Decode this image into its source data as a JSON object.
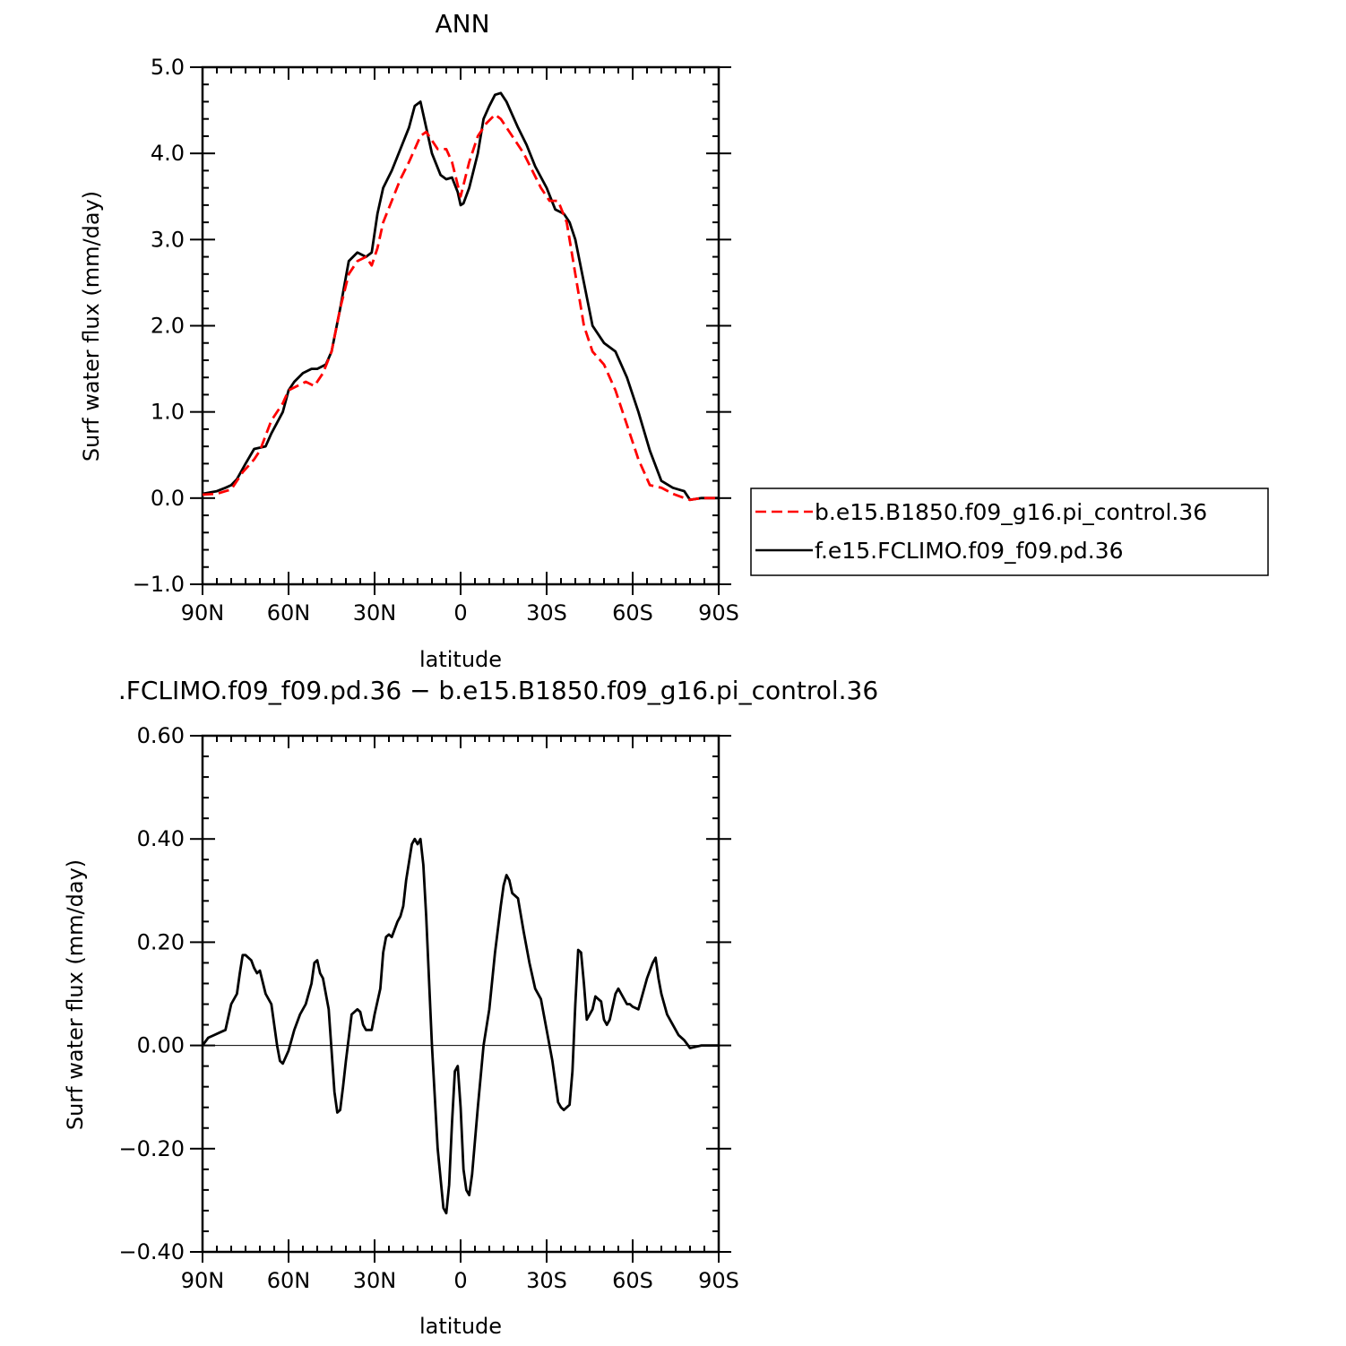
{
  "chart_data": [
    {
      "type": "line",
      "title": "ANN",
      "xlabel": "latitude",
      "ylabel": "Surf water flux (mm/day)",
      "xlim": [
        90,
        -90
      ],
      "ylim": [
        -1.0,
        5.0
      ],
      "xticks": [
        90,
        60,
        30,
        0,
        -30,
        -60,
        -90
      ],
      "xtick_labels": [
        "90N",
        "60N",
        "30N",
        "0",
        "30S",
        "60S",
        "90S"
      ],
      "yticks": [
        -1.0,
        0.0,
        1.0,
        2.0,
        3.0,
        4.0,
        5.0
      ],
      "ytick_labels": [
        "−1.0",
        "0.0",
        "1.0",
        "2.0",
        "3.0",
        "4.0",
        "5.0"
      ],
      "grid": false,
      "legend_position": "right, outside plot",
      "series": [
        {
          "name": "b.e15.B1850.f09_g16.pi_control.36",
          "color": "#ff0000",
          "dash": "dashed",
          "x": [
            90,
            85,
            80,
            76,
            72,
            70,
            66,
            62,
            60,
            57,
            54,
            51,
            48,
            45,
            42,
            39,
            36,
            33,
            31,
            29,
            27,
            24,
            21,
            18,
            16,
            14,
            12,
            10,
            8,
            5,
            3,
            0,
            -3,
            -6,
            -9,
            -12,
            -14,
            -16,
            -19,
            -22,
            -25,
            -28,
            -31,
            -34,
            -37,
            -40,
            -43,
            -46,
            -50,
            -54,
            -58,
            -62,
            -66,
            -70,
            -74,
            -78,
            -80,
            -84,
            -90
          ],
          "y": [
            0.04,
            0.05,
            0.1,
            0.3,
            0.45,
            0.55,
            0.9,
            1.1,
            1.25,
            1.3,
            1.35,
            1.3,
            1.45,
            1.7,
            2.2,
            2.6,
            2.75,
            2.8,
            2.7,
            2.9,
            3.2,
            3.45,
            3.7,
            3.9,
            4.05,
            4.2,
            4.25,
            4.15,
            4.05,
            4.05,
            3.9,
            3.5,
            3.9,
            4.2,
            4.35,
            4.45,
            4.4,
            4.3,
            4.15,
            4.0,
            3.8,
            3.6,
            3.45,
            3.45,
            3.2,
            2.6,
            2.0,
            1.7,
            1.55,
            1.25,
            0.85,
            0.45,
            0.15,
            0.12,
            0.05,
            0.0,
            -0.02,
            0.0,
            0.0
          ]
        },
        {
          "name": "f.e15.FCLIMO.f09_f09.pd.36",
          "color": "#000000",
          "dash": "solid",
          "x": [
            90,
            85,
            82,
            80,
            78,
            75,
            72,
            68,
            66,
            62,
            60,
            58,
            55,
            52,
            50,
            47,
            45,
            42,
            39,
            36,
            33,
            31,
            29,
            27,
            24,
            21,
            18,
            16,
            14,
            12,
            10,
            7,
            5,
            3,
            1,
            0,
            -1,
            -3,
            -6,
            -8,
            -10,
            -12,
            -14,
            -16,
            -18,
            -20,
            -23,
            -26,
            -30,
            -33,
            -36,
            -38,
            -40,
            -43,
            -46,
            -50,
            -54,
            -58,
            -62,
            -66,
            -70,
            -74,
            -78,
            -80,
            -84,
            -90
          ],
          "y": [
            0.05,
            0.08,
            0.12,
            0.15,
            0.22,
            0.4,
            0.57,
            0.6,
            0.75,
            1.0,
            1.25,
            1.35,
            1.45,
            1.5,
            1.5,
            1.55,
            1.7,
            2.2,
            2.75,
            2.85,
            2.8,
            2.85,
            3.3,
            3.6,
            3.8,
            4.05,
            4.3,
            4.55,
            4.6,
            4.3,
            4.0,
            3.75,
            3.7,
            3.72,
            3.55,
            3.4,
            3.42,
            3.6,
            4.0,
            4.4,
            4.55,
            4.68,
            4.7,
            4.6,
            4.45,
            4.3,
            4.1,
            3.85,
            3.6,
            3.35,
            3.3,
            3.2,
            3.0,
            2.5,
            2.0,
            1.8,
            1.7,
            1.4,
            1.0,
            0.55,
            0.2,
            0.12,
            0.08,
            -0.02,
            0.0,
            0.0
          ]
        }
      ]
    },
    {
      "type": "line",
      "title": ".FCLIMO.f09_f09.pd.36 − b.e15.B1850.f09_g16.pi_control.36",
      "xlabel": "latitude",
      "ylabel": "Surf water flux (mm/day)",
      "xlim": [
        90,
        -90
      ],
      "ylim": [
        -0.4,
        0.6
      ],
      "xticks": [
        90,
        60,
        30,
        0,
        -30,
        -60,
        -90
      ],
      "xtick_labels": [
        "90N",
        "60N",
        "30N",
        "0",
        "30S",
        "60S",
        "90S"
      ],
      "yticks": [
        -0.4,
        -0.2,
        0.0,
        0.2,
        0.4,
        0.6
      ],
      "ytick_labels": [
        "−0.40",
        "−0.20",
        "0.00",
        "0.20",
        "0.40",
        "0.60"
      ],
      "grid": false,
      "series": [
        {
          "color": "#000000",
          "dash": "solid",
          "x": [
            90,
            88,
            86,
            84,
            82,
            80,
            78,
            77,
            76,
            75,
            73,
            72,
            71,
            70,
            68,
            66,
            64,
            63,
            62,
            60,
            58,
            56,
            54,
            52,
            51,
            50,
            49,
            48,
            46,
            44,
            43,
            42,
            41,
            40,
            38,
            36,
            35,
            34,
            33,
            31,
            30,
            28,
            27,
            26,
            25,
            24,
            22,
            21,
            20,
            19,
            17,
            16,
            15,
            14,
            13,
            12,
            10,
            8,
            6,
            5,
            4,
            3,
            2,
            1,
            0,
            -1,
            -2,
            -3,
            -4,
            -6,
            -8,
            -10,
            -12,
            -14,
            -15,
            -16,
            -17,
            -18,
            -20,
            -22,
            -24,
            -26,
            -28,
            -30,
            -32,
            -34,
            -35,
            -36,
            -38,
            -39,
            -40,
            -41,
            -42,
            -43,
            -44,
            -46,
            -47,
            -48,
            -49,
            -50,
            -51,
            -52,
            -54,
            -55,
            -56,
            -58,
            -59,
            -60,
            -62,
            -64,
            -65,
            -67,
            -68,
            -69,
            -70,
            -71,
            -72,
            -74,
            -75,
            -76,
            -78,
            -80,
            -84,
            -90
          ],
          "y": [
            0.0,
            0.015,
            0.02,
            0.025,
            0.03,
            0.08,
            0.1,
            0.14,
            0.175,
            0.175,
            0.165,
            0.15,
            0.14,
            0.145,
            0.1,
            0.08,
            0.0,
            -0.03,
            -0.035,
            -0.01,
            0.03,
            0.06,
            0.08,
            0.12,
            0.16,
            0.165,
            0.14,
            0.13,
            0.07,
            -0.09,
            -0.13,
            -0.125,
            -0.08,
            -0.03,
            0.06,
            0.07,
            0.065,
            0.04,
            0.03,
            0.03,
            0.06,
            0.11,
            0.18,
            0.21,
            0.215,
            0.21,
            0.24,
            0.25,
            0.27,
            0.32,
            0.39,
            0.4,
            0.39,
            0.4,
            0.35,
            0.25,
            0.0,
            -0.2,
            -0.315,
            -0.325,
            -0.27,
            -0.15,
            -0.05,
            -0.04,
            -0.12,
            -0.24,
            -0.28,
            -0.29,
            -0.25,
            -0.12,
            0.0,
            0.07,
            0.18,
            0.27,
            0.31,
            0.33,
            0.32,
            0.295,
            0.285,
            0.22,
            0.16,
            0.11,
            0.09,
            0.03,
            -0.03,
            -0.11,
            -0.12,
            -0.125,
            -0.115,
            -0.05,
            0.08,
            0.185,
            0.18,
            0.12,
            0.05,
            0.07,
            0.095,
            0.09,
            0.085,
            0.05,
            0.04,
            0.05,
            0.1,
            0.11,
            0.1,
            0.08,
            0.08,
            0.075,
            0.07,
            0.11,
            0.13,
            0.16,
            0.17,
            0.13,
            0.1,
            0.08,
            0.06,
            0.04,
            0.03,
            0.02,
            0.01,
            -0.005,
            0.0,
            0.0
          ]
        }
      ]
    }
  ]
}
